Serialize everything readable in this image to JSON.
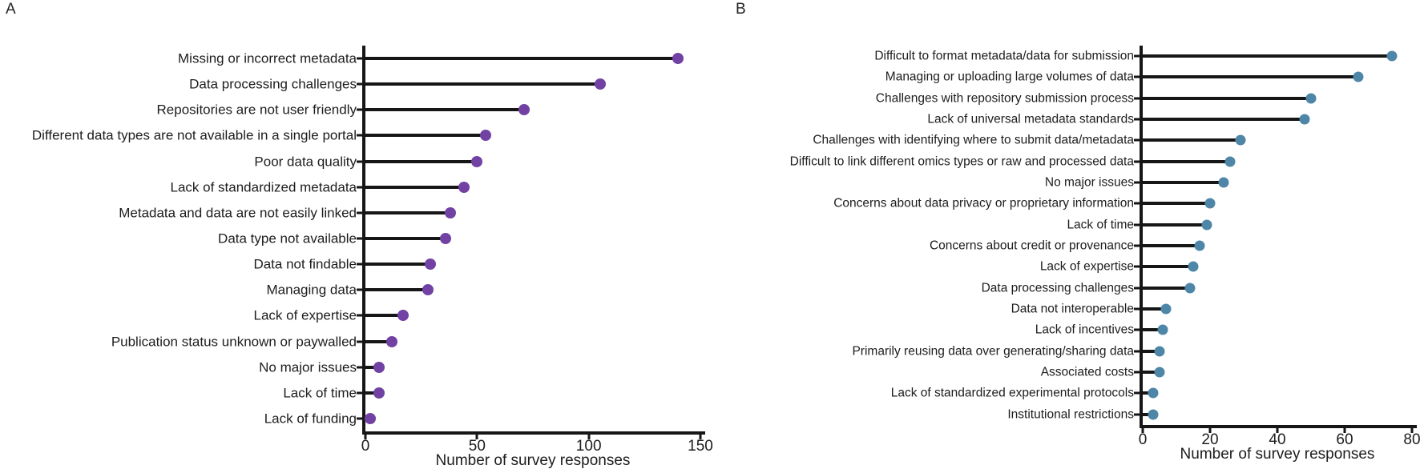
{
  "figure": {
    "background": "#ffffff",
    "axis_color": "#161616",
    "text_color": "#1d1d1d"
  },
  "chart_data": [
    {
      "type": "bar",
      "style": "lollipop",
      "orientation": "horizontal",
      "panel": "A",
      "xlabel": "Number of survey responses",
      "xlim": [
        0,
        150
      ],
      "xticks": [
        0,
        50,
        100,
        150
      ],
      "grid": false,
      "dot_color": "#7142a3",
      "categories": [
        "Missing or incorrect metadata",
        "Data processing challenges",
        "Repositories are not user friendly",
        "Different data types are not available in a single portal",
        "Poor data quality",
        "Lack of standardized metadata",
        "Metadata and data are not easily linked",
        "Data type not available",
        "Data not findable",
        "Managing data",
        "Lack of expertise",
        "Publication status unknown or paywalled",
        "No major issues",
        "Lack of time",
        "Lack of funding"
      ],
      "values": [
        140,
        105,
        71,
        54,
        50,
        44,
        38,
        36,
        29,
        28,
        17,
        12,
        6,
        6,
        2
      ]
    },
    {
      "type": "bar",
      "style": "lollipop",
      "orientation": "horizontal",
      "panel": "B",
      "xlabel": "Number of survey responses",
      "xlim": [
        0,
        80
      ],
      "xticks": [
        0,
        20,
        40,
        60,
        80
      ],
      "grid": false,
      "dot_color": "#4e86a8",
      "categories": [
        "Difficult to format metadata/data for submission",
        "Managing or uploading large volumes of data",
        "Challenges with repository submission process",
        "Lack of universal metadata standards",
        "Challenges with identifying where to submit data/metadata",
        "Difficult to link different omics types or raw and processed data",
        "No major issues",
        "Concerns about data privacy or proprietary information",
        "Lack of time",
        "Concerns about credit or provenance",
        "Lack of expertise",
        "Data processing challenges",
        "Data not interoperable",
        "Lack of incentives",
        "Primarily reusing data over generating/sharing data",
        "Associated costs",
        "Lack of standardized experimental protocols",
        "Institutional restrictions"
      ],
      "values": [
        74,
        64,
        50,
        48,
        29,
        26,
        24,
        20,
        19,
        17,
        15,
        14,
        7,
        6,
        5,
        5,
        3,
        3
      ]
    }
  ]
}
